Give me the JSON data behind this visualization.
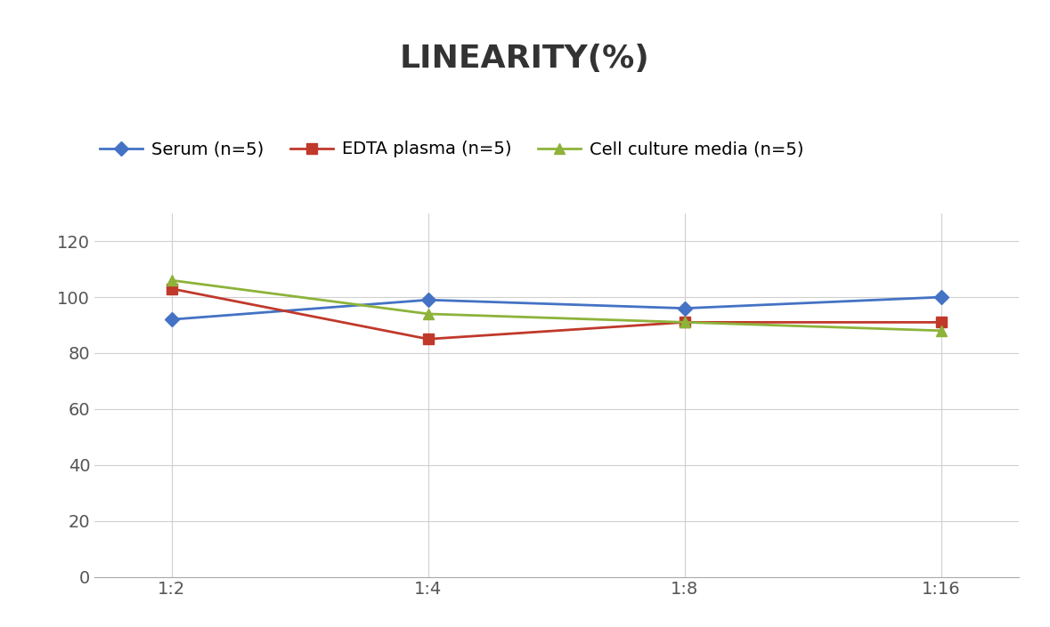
{
  "title": "LINEARITY(%)",
  "x_labels": [
    "1:2",
    "1:4",
    "1:8",
    "1:16"
  ],
  "series": [
    {
      "label": "Serum (n=5)",
      "values": [
        92,
        99,
        96,
        100
      ],
      "color": "#4472C4",
      "marker": "D",
      "marker_size": 8,
      "linewidth": 2.0
    },
    {
      "label": "EDTA plasma (n=5)",
      "values": [
        103,
        85,
        91,
        91
      ],
      "color": "#C0392B",
      "marker": "s",
      "marker_size": 8,
      "linewidth": 2.0
    },
    {
      "label": "Cell culture media (n=5)",
      "values": [
        106,
        94,
        91,
        88
      ],
      "color": "#8DB33A",
      "marker": "^",
      "marker_size": 9,
      "linewidth": 2.0
    }
  ],
  "ylim": [
    0,
    130
  ],
  "yticks": [
    0,
    20,
    40,
    60,
    80,
    100,
    120
  ],
  "background_color": "#ffffff",
  "grid_color": "#d0d0d0",
  "title_fontsize": 26,
  "legend_fontsize": 14,
  "tick_fontsize": 14
}
